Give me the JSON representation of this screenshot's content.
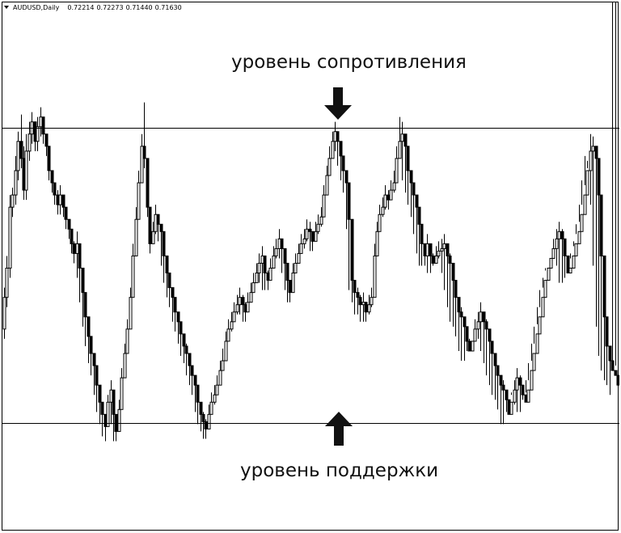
{
  "header": {
    "symbol": "AUDUSD,Daily",
    "open": "0.72214",
    "high": "0.72273",
    "low": "0.71440",
    "close": "0.71630",
    "menu_icon": "triangle-down-icon"
  },
  "annotations": {
    "resistance_label": "уровень сопротивления",
    "support_label": "уровень поддержки",
    "resistance_arrow_icon": "arrow-down-icon",
    "support_arrow_icon": "arrow-up-icon"
  },
  "colors": {
    "candle": "#000000",
    "level_line": "#000000",
    "background": "#ffffff"
  },
  "chart_data": {
    "type": "candlestick",
    "series": [
      {
        "values": [
          0.735,
          0.748,
          0.76,
          0.785,
          0.79,
          0.8,
          0.812,
          0.805,
          0.792,
          0.808,
          0.815,
          0.82,
          0.812,
          0.818,
          0.822,
          0.815,
          0.81,
          0.8,
          0.795,
          0.79,
          0.786,
          0.79,
          0.785,
          0.78,
          0.776,
          0.77,
          0.766,
          0.77,
          0.76,
          0.75,
          0.74,
          0.732,
          0.725,
          0.72,
          0.712,
          0.705,
          0.7,
          0.695,
          0.705,
          0.71,
          0.7,
          0.693,
          0.702,
          0.715,
          0.725,
          0.735,
          0.748,
          0.765,
          0.78,
          0.795,
          0.81,
          0.805,
          0.785,
          0.77,
          0.775,
          0.782,
          0.778,
          0.775,
          0.765,
          0.758,
          0.752,
          0.748,
          0.742,
          0.738,
          0.733,
          0.728,
          0.725,
          0.72,
          0.716,
          0.712,
          0.705,
          0.7,
          0.697,
          0.694,
          0.7,
          0.705,
          0.708,
          0.712,
          0.718,
          0.722,
          0.73,
          0.735,
          0.738,
          0.742,
          0.745,
          0.748,
          0.745,
          0.742,
          0.746,
          0.75,
          0.754,
          0.758,
          0.762,
          0.765,
          0.758,
          0.755,
          0.76,
          0.765,
          0.768,
          0.772,
          0.768,
          0.762,
          0.755,
          0.75,
          0.758,
          0.762,
          0.766,
          0.77,
          0.772,
          0.776,
          0.775,
          0.771,
          0.775,
          0.778,
          0.781,
          0.79,
          0.798,
          0.805,
          0.812,
          0.816,
          0.812,
          0.806,
          0.8,
          0.795,
          0.78,
          0.755,
          0.75,
          0.748,
          0.745,
          0.746,
          0.742,
          0.745,
          0.748,
          0.765,
          0.775,
          0.782,
          0.785,
          0.79,
          0.788,
          0.792,
          0.795,
          0.805,
          0.812,
          0.815,
          0.81,
          0.8,
          0.795,
          0.79,
          0.785,
          0.778,
          0.77,
          0.765,
          0.77,
          0.765,
          0.762,
          0.765,
          0.767,
          0.768,
          0.77,
          0.765,
          0.762,
          0.755,
          0.748,
          0.742,
          0.74,
          0.736,
          0.73,
          0.726,
          0.73,
          0.735,
          0.738,
          0.742,
          0.738,
          0.735,
          0.73,
          0.725,
          0.72,
          0.716,
          0.712,
          0.71,
          0.706,
          0.7,
          0.705,
          0.71,
          0.715,
          0.712,
          0.708,
          0.705,
          0.71,
          0.718,
          0.725,
          0.733,
          0.74,
          0.748,
          0.755,
          0.76,
          0.764,
          0.768,
          0.772,
          0.775,
          0.772,
          0.765,
          0.758,
          0.76,
          0.765,
          0.77,
          0.775,
          0.782,
          0.79,
          0.8,
          0.808,
          0.81,
          0.805,
          0.79,
          0.765,
          0.74,
          0.728,
          0.722,
          0.718,
          0.716
        ]
      },
      {
        "values": [
          0.748,
          0.76,
          0.785,
          0.79,
          0.8,
          0.812,
          0.805,
          0.792,
          0.808,
          0.815,
          0.82,
          0.812,
          0.818,
          0.822,
          0.815,
          0.81,
          0.8,
          0.795,
          0.79,
          0.786,
          0.79,
          0.785,
          0.78,
          0.776,
          0.77,
          0.766,
          0.77,
          0.76,
          0.75,
          0.74,
          0.732,
          0.725,
          0.72,
          0.712,
          0.705,
          0.7,
          0.695,
          0.705,
          0.71,
          0.7,
          0.693,
          0.702,
          0.715,
          0.725,
          0.735,
          0.748,
          0.765,
          0.78,
          0.795,
          0.81,
          0.805,
          0.785,
          0.77,
          0.775,
          0.782,
          0.778,
          0.775,
          0.765,
          0.758,
          0.752,
          0.748,
          0.742,
          0.738,
          0.733,
          0.728,
          0.725,
          0.72,
          0.716,
          0.712,
          0.705,
          0.7,
          0.697,
          0.694,
          0.7,
          0.705,
          0.708,
          0.712,
          0.718,
          0.722,
          0.73,
          0.735,
          0.738,
          0.742,
          0.745,
          0.748,
          0.745,
          0.742,
          0.746,
          0.75,
          0.754,
          0.758,
          0.762,
          0.765,
          0.758,
          0.755,
          0.76,
          0.765,
          0.768,
          0.772,
          0.768,
          0.762,
          0.755,
          0.75,
          0.758,
          0.762,
          0.766,
          0.77,
          0.772,
          0.776,
          0.775,
          0.771,
          0.775,
          0.778,
          0.781,
          0.79,
          0.798,
          0.805,
          0.812,
          0.816,
          0.812,
          0.806,
          0.8,
          0.795,
          0.78,
          0.755,
          0.75,
          0.748,
          0.745,
          0.746,
          0.742,
          0.745,
          0.748,
          0.765,
          0.775,
          0.782,
          0.785,
          0.79,
          0.788,
          0.792,
          0.795,
          0.805,
          0.812,
          0.815,
          0.81,
          0.8,
          0.795,
          0.79,
          0.785,
          0.778,
          0.77,
          0.765,
          0.77,
          0.765,
          0.762,
          0.765,
          0.767,
          0.768,
          0.77,
          0.765,
          0.762,
          0.755,
          0.748,
          0.742,
          0.74,
          0.736,
          0.73,
          0.726,
          0.73,
          0.735,
          0.738,
          0.742,
          0.738,
          0.735,
          0.73,
          0.725,
          0.72,
          0.716,
          0.712,
          0.71,
          0.706,
          0.7,
          0.705,
          0.71,
          0.715,
          0.712,
          0.708,
          0.705,
          0.71,
          0.718,
          0.725,
          0.733,
          0.74,
          0.748,
          0.755,
          0.76,
          0.764,
          0.768,
          0.772,
          0.775,
          0.772,
          0.765,
          0.758,
          0.76,
          0.765,
          0.77,
          0.775,
          0.782,
          0.79,
          0.8,
          0.808,
          0.81,
          0.805,
          0.79,
          0.765,
          0.74,
          0.728,
          0.722,
          0.718,
          0.716,
          0.712
        ]
      },
      {
        "values": [
          0.752,
          0.765,
          0.79,
          0.793,
          0.806,
          0.816,
          0.823,
          0.81,
          0.815,
          0.82,
          0.824,
          0.82,
          0.822,
          0.826,
          0.818,
          0.814,
          0.804,
          0.798,
          0.794,
          0.792,
          0.794,
          0.789,
          0.784,
          0.78,
          0.775,
          0.771,
          0.775,
          0.764,
          0.755,
          0.745,
          0.736,
          0.729,
          0.724,
          0.716,
          0.709,
          0.704,
          0.7,
          0.708,
          0.714,
          0.705,
          0.697,
          0.706,
          0.719,
          0.729,
          0.739,
          0.752,
          0.77,
          0.785,
          0.8,
          0.815,
          0.828,
          0.792,
          0.774,
          0.779,
          0.786,
          0.782,
          0.778,
          0.769,
          0.762,
          0.756,
          0.752,
          0.746,
          0.742,
          0.737,
          0.733,
          0.729,
          0.724,
          0.72,
          0.716,
          0.709,
          0.704,
          0.701,
          0.698,
          0.704,
          0.709,
          0.712,
          0.716,
          0.722,
          0.727,
          0.734,
          0.739,
          0.742,
          0.746,
          0.749,
          0.752,
          0.749,
          0.746,
          0.75,
          0.754,
          0.758,
          0.762,
          0.766,
          0.769,
          0.762,
          0.759,
          0.764,
          0.769,
          0.772,
          0.776,
          0.772,
          0.766,
          0.759,
          0.754,
          0.762,
          0.766,
          0.77,
          0.774,
          0.776,
          0.78,
          0.779,
          0.775,
          0.779,
          0.782,
          0.785,
          0.794,
          0.802,
          0.81,
          0.816,
          0.82,
          0.816,
          0.81,
          0.804,
          0.799,
          0.784,
          0.76,
          0.754,
          0.752,
          0.749,
          0.75,
          0.746,
          0.749,
          0.752,
          0.77,
          0.779,
          0.786,
          0.789,
          0.794,
          0.792,
          0.796,
          0.8,
          0.81,
          0.822,
          0.82,
          0.814,
          0.804,
          0.799,
          0.794,
          0.789,
          0.782,
          0.774,
          0.769,
          0.774,
          0.769,
          0.766,
          0.769,
          0.771,
          0.772,
          0.774,
          0.769,
          0.766,
          0.759,
          0.752,
          0.746,
          0.744,
          0.74,
          0.734,
          0.73,
          0.734,
          0.739,
          0.742,
          0.746,
          0.742,
          0.739,
          0.734,
          0.729,
          0.724,
          0.72,
          0.716,
          0.714,
          0.71,
          0.704,
          0.709,
          0.714,
          0.719,
          0.716,
          0.712,
          0.709,
          0.714,
          0.722,
          0.729,
          0.737,
          0.744,
          0.752,
          0.759,
          0.764,
          0.768,
          0.772,
          0.776,
          0.779,
          0.776,
          0.769,
          0.762,
          0.764,
          0.769,
          0.774,
          0.779,
          0.786,
          0.794,
          0.804,
          0.815,
          0.814,
          0.809,
          0.794,
          0.769,
          0.744,
          0.732,
          0.726,
          0.722,
          0.72
        ]
      },
      {
        "values": [
          0.731,
          0.744,
          0.756,
          0.781,
          0.786,
          0.796,
          0.801,
          0.788,
          0.788,
          0.804,
          0.811,
          0.808,
          0.808,
          0.814,
          0.811,
          0.806,
          0.796,
          0.791,
          0.786,
          0.782,
          0.782,
          0.781,
          0.776,
          0.772,
          0.766,
          0.762,
          0.756,
          0.746,
          0.736,
          0.728,
          0.721,
          0.716,
          0.708,
          0.701,
          0.696,
          0.691,
          0.689,
          0.701,
          0.696,
          0.689,
          0.689,
          0.698,
          0.711,
          0.721,
          0.731,
          0.744,
          0.761,
          0.776,
          0.791,
          0.806,
          0.801,
          0.781,
          0.766,
          0.771,
          0.774,
          0.771,
          0.761,
          0.754,
          0.748,
          0.744,
          0.738,
          0.734,
          0.729,
          0.724,
          0.721,
          0.716,
          0.712,
          0.708,
          0.701,
          0.696,
          0.693,
          0.69,
          0.69,
          0.696,
          0.701,
          0.704,
          0.708,
          0.714,
          0.718,
          0.726,
          0.731,
          0.734,
          0.738,
          0.741,
          0.741,
          0.738,
          0.738,
          0.742,
          0.746,
          0.75,
          0.754,
          0.754,
          0.751,
          0.751,
          0.751,
          0.756,
          0.761,
          0.764,
          0.764,
          0.758,
          0.751,
          0.746,
          0.746,
          0.754,
          0.758,
          0.762,
          0.766,
          0.768,
          0.771,
          0.767,
          0.767,
          0.771,
          0.774,
          0.777,
          0.786,
          0.794,
          0.801,
          0.808,
          0.808,
          0.802,
          0.796,
          0.791,
          0.776,
          0.751,
          0.746,
          0.741,
          0.741,
          0.738,
          0.738,
          0.738,
          0.741,
          0.744,
          0.761,
          0.771,
          0.778,
          0.781,
          0.784,
          0.784,
          0.788,
          0.791,
          0.801,
          0.806,
          0.796,
          0.791,
          0.786,
          0.781,
          0.774,
          0.766,
          0.761,
          0.761,
          0.761,
          0.758,
          0.758,
          0.761,
          0.764,
          0.764,
          0.758,
          0.751,
          0.744,
          0.738,
          0.736,
          0.732,
          0.726,
          0.722,
          0.722,
          0.726,
          0.731,
          0.734,
          0.734,
          0.731,
          0.726,
          0.721,
          0.716,
          0.712,
          0.708,
          0.706,
          0.702,
          0.696,
          0.696,
          0.701,
          0.706,
          0.708,
          0.704,
          0.701,
          0.701,
          0.706,
          0.714,
          0.721,
          0.729,
          0.736,
          0.744,
          0.751,
          0.756,
          0.76,
          0.764,
          0.768,
          0.768,
          0.761,
          0.754,
          0.754,
          0.756,
          0.761,
          0.766,
          0.771,
          0.778,
          0.786,
          0.796,
          0.806,
          0.801,
          0.786,
          0.761,
          0.736,
          0.724,
          0.718,
          0.714,
          0.712,
          0.708
        ]
      }
    ],
    "series_roles": [
      "open",
      "close",
      "high",
      "low"
    ],
    "levels": [
      {
        "value": 0.8175
      },
      {
        "value": 0.6965
      }
    ],
    "y_range": [
      0.652,
      0.869
    ],
    "grid": false,
    "legend": "none"
  }
}
